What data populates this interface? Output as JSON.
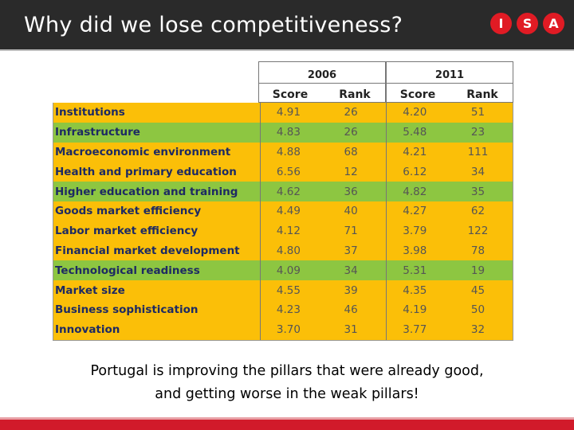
{
  "header": {
    "title": "Why did we lose competitiveness?",
    "logo_letters": [
      "I",
      "S",
      "A"
    ],
    "logo_color": "#e01b24"
  },
  "table": {
    "years": [
      "2006",
      "2011"
    ],
    "subheaders": [
      "Score",
      "Rank",
      "Score",
      "Rank"
    ],
    "rows": [
      {
        "label": "Institutions",
        "color": "yellow",
        "s2006": "4.91",
        "r2006": "26",
        "s2011": "4.20",
        "r2011": "51"
      },
      {
        "label": "Infrastructure",
        "color": "green",
        "s2006": "4.83",
        "r2006": "26",
        "s2011": "5.48",
        "r2011": "23"
      },
      {
        "label": "Macroeconomic environment",
        "color": "yellow",
        "s2006": "4.88",
        "r2006": "68",
        "s2011": "4.21",
        "r2011": "111"
      },
      {
        "label": "Health and primary education",
        "color": "yellow",
        "s2006": "6.56",
        "r2006": "12",
        "s2011": "6.12",
        "r2011": "34"
      },
      {
        "label": "Higher education and training",
        "color": "green",
        "s2006": "4.62",
        "r2006": "36",
        "s2011": "4.82",
        "r2011": "35"
      },
      {
        "label": "Goods market efficiency",
        "color": "yellow",
        "s2006": "4.49",
        "r2006": "40",
        "s2011": "4.27",
        "r2011": "62"
      },
      {
        "label": "Labor market efficiency",
        "color": "yellow",
        "s2006": "4.12",
        "r2006": "71",
        "s2011": "3.79",
        "r2011": "122"
      },
      {
        "label": "Financial market development",
        "color": "yellow",
        "s2006": "4.80",
        "r2006": "37",
        "s2011": "3.98",
        "r2011": "78"
      },
      {
        "label": "Technological readiness",
        "color": "green",
        "s2006": "4.09",
        "r2006": "34",
        "s2011": "5.31",
        "r2011": "19"
      },
      {
        "label": "Market size",
        "color": "yellow",
        "s2006": "4.55",
        "r2006": "39",
        "s2011": "4.35",
        "r2011": "45"
      },
      {
        "label": "Business sophistication",
        "color": "yellow",
        "s2006": "4.23",
        "r2006": "46",
        "s2011": "4.19",
        "r2011": "50"
      },
      {
        "label": "Innovation",
        "color": "yellow",
        "s2006": "3.70",
        "r2006": "31",
        "s2011": "3.77",
        "r2011": "32"
      }
    ],
    "colors": {
      "green": "#8dc641",
      "yellow": "#fbbf08"
    }
  },
  "caption": {
    "line1": "Portugal is improving the pillars that were already good,",
    "line2": "and getting worse in the weak pillars!"
  },
  "accent_color": "#d11a2a"
}
